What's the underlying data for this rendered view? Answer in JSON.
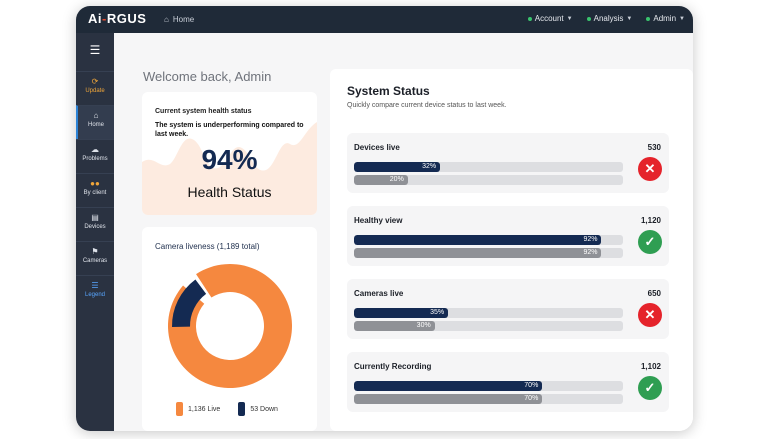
{
  "app": {
    "logo_a": "Ai",
    "logo_dash": "-",
    "logo_rest": "RGUS",
    "home_label": "Home"
  },
  "top_menu": [
    {
      "label": "Account"
    },
    {
      "label": "Analysis"
    },
    {
      "label": "Admin"
    }
  ],
  "sidebar": {
    "items": [
      {
        "label": "Update",
        "icon": "refresh-icon"
      },
      {
        "label": "Home",
        "icon": "home-icon"
      },
      {
        "label": "Problems",
        "icon": "cloud-icon"
      },
      {
        "label": "By client",
        "icon": "users-icon"
      },
      {
        "label": "Devices",
        "icon": "device-icon"
      },
      {
        "label": "Cameras",
        "icon": "flag-icon"
      },
      {
        "label": "Legend",
        "icon": "list-icon"
      }
    ]
  },
  "welcome": "Welcome back, Admin",
  "health": {
    "label": "Current system health status",
    "message": "The system is underperforming compared to last week.",
    "value": "94%",
    "caption": "Health Status"
  },
  "cameras": {
    "title": "Camera liveness (1,189 total)",
    "live_count": 1136,
    "down_count": 53,
    "live_label": "1,136  Live",
    "down_label": "53  Down",
    "live_color": "#f5883f",
    "down_color": "#142a52"
  },
  "system_status": {
    "title": "System Status",
    "subtitle": "Quickly compare current device status to last week.",
    "metrics": [
      {
        "label": "Devices live",
        "value": "530",
        "current": "32%",
        "previous": "20%",
        "current_pct": 32,
        "previous_pct": 20,
        "status": "bad"
      },
      {
        "label": "Healthy view",
        "value": "1,120",
        "current": "92%",
        "previous": "92%",
        "current_pct": 92,
        "previous_pct": 92,
        "status": "good"
      },
      {
        "label": "Cameras live",
        "value": "650",
        "current": "35%",
        "previous": "30%",
        "current_pct": 35,
        "previous_pct": 30,
        "status": "bad"
      },
      {
        "label": "Currently Recording",
        "value": "1,102",
        "current": "70%",
        "previous": "70%",
        "current_pct": 70,
        "previous_pct": 70,
        "status": "good"
      }
    ]
  }
}
